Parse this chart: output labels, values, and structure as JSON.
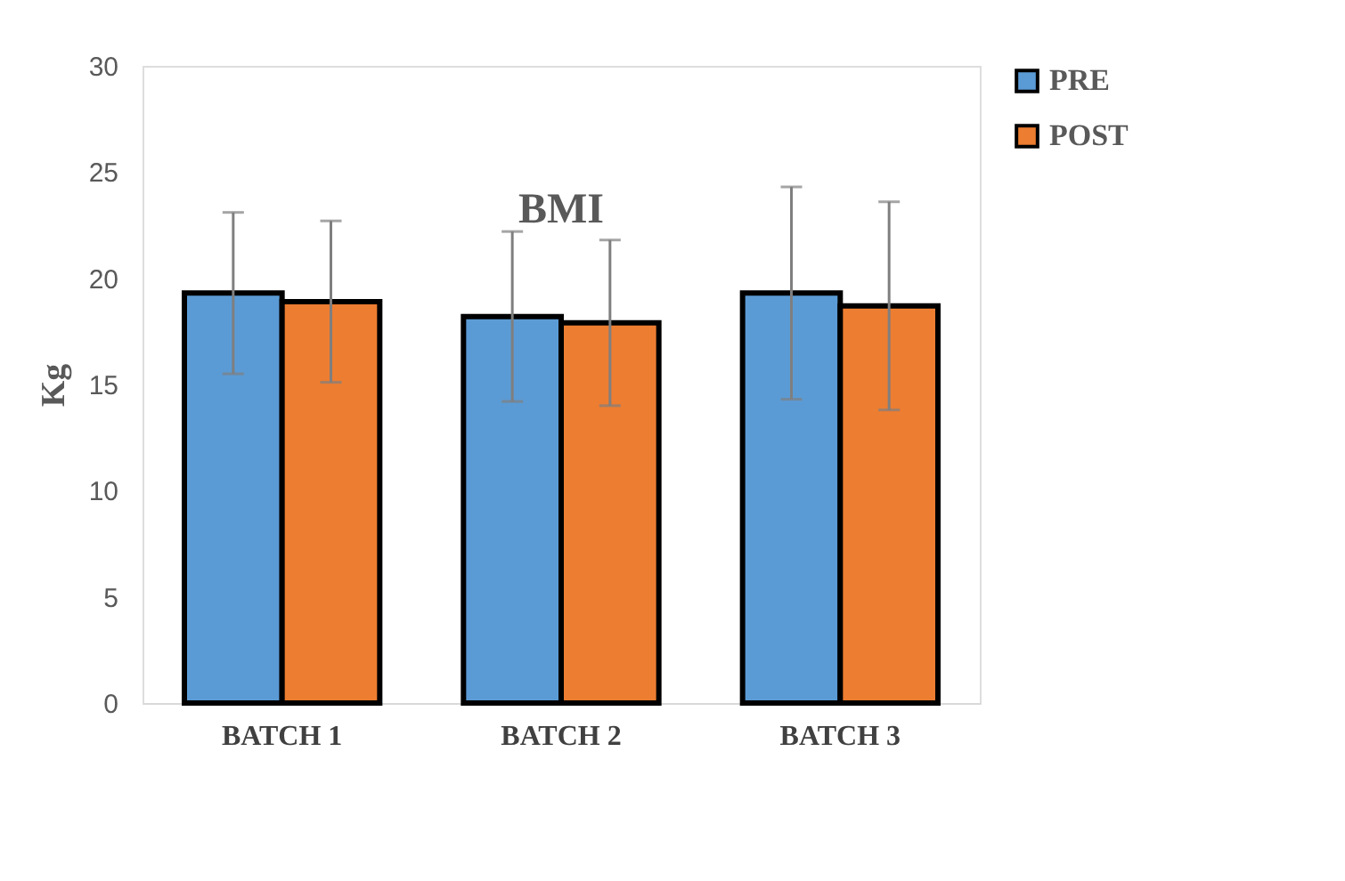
{
  "chart_data": {
    "type": "bar",
    "title": "BMI",
    "ylabel": "Kg",
    "categories": [
      "BATCH 1",
      "BATCH 2",
      "BATCH 3"
    ],
    "series": [
      {
        "name": "PRE",
        "color": "#5b9bd5",
        "values": [
          19.3,
          18.2,
          19.3
        ],
        "errors": [
          3.8,
          4.0,
          5.0
        ]
      },
      {
        "name": "POST",
        "color": "#ed7d31",
        "values": [
          18.9,
          17.9,
          18.7
        ],
        "errors": [
          3.8,
          3.9,
          4.9
        ]
      }
    ],
    "ylim": [
      0,
      30
    ],
    "yticks": [
      0,
      5,
      10,
      15,
      20,
      25,
      30
    ],
    "grid": false,
    "legend": "right"
  }
}
